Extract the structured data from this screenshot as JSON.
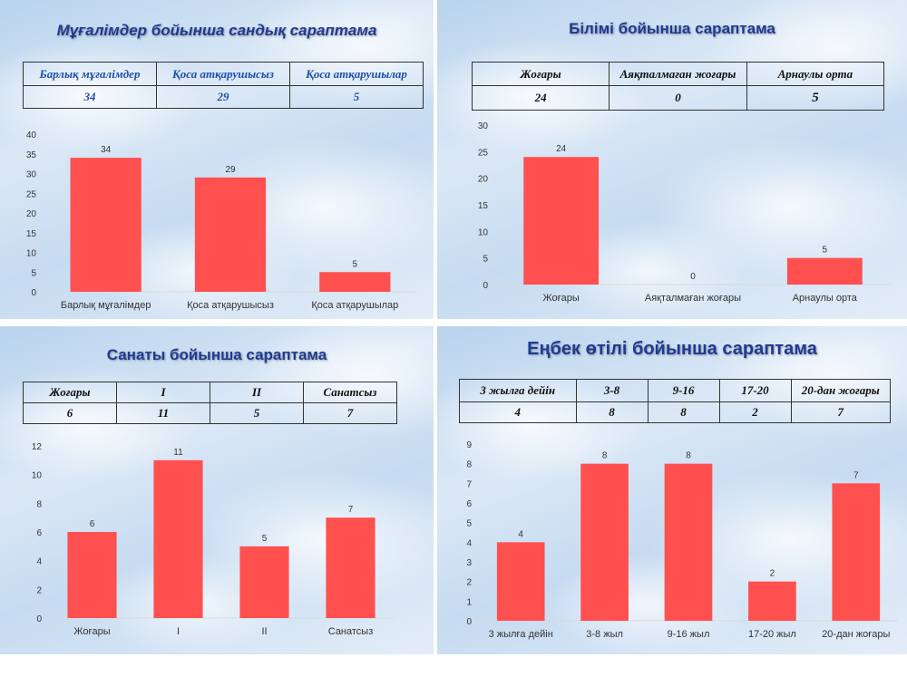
{
  "panels": {
    "p1": {
      "title": "Мұғалімдер бойынша сандық сараптама",
      "table": {
        "headers": [
          "Барлық мұғалімдер",
          "Қоса атқарушысыз",
          "Қоса атқарушылар"
        ],
        "values": [
          "34",
          "29",
          "5"
        ]
      }
    },
    "p2": {
      "title": "Білімі бойынша сараптама",
      "table": {
        "headers": [
          "Жоғары",
          "Аяқталмаған жоғары",
          "Арнаулы орта"
        ],
        "values": [
          "24",
          "0",
          "5"
        ]
      }
    },
    "p3": {
      "title": "Санаты бойынша сараптама",
      "table": {
        "headers": [
          "Жоғары",
          "I",
          "II",
          "Санатсыз"
        ],
        "values": [
          "6",
          "11",
          "5",
          "7"
        ]
      }
    },
    "p4": {
      "title": "Еңбек өтілі бойынша сараптама",
      "table": {
        "headers": [
          "3 жылға дейін",
          "3-8",
          "9-16",
          "17-20",
          "20-дан жоғары"
        ],
        "values": [
          "4",
          "8",
          "8",
          "2",
          "7"
        ]
      }
    }
  },
  "colors": {
    "bar": "#ff5050",
    "title_p1": "#1f3a93",
    "title_p2": "#1f3a93",
    "table_text": "#1f4fa8",
    "table_text_dark": "#111111"
  },
  "chart_data": [
    {
      "type": "bar",
      "categories": [
        "Барлық мұғалімдер",
        "Қоса атқарушысыз",
        "Қоса атқарушылар"
      ],
      "values": [
        34,
        29,
        5
      ],
      "yticks": [
        "0",
        "5",
        "10",
        "15",
        "20",
        "25",
        "30",
        "35",
        "40"
      ],
      "ylim": [
        0,
        40
      ],
      "grid": false
    },
    {
      "type": "bar",
      "categories": [
        "Жоғары",
        "Аяқталмаған жоғары",
        "Арнаулы орта"
      ],
      "values": [
        24,
        0,
        5
      ],
      "yticks": [
        "0",
        "5",
        "10",
        "15",
        "20",
        "25",
        "30"
      ],
      "ylim": [
        0,
        30
      ],
      "grid": false
    },
    {
      "type": "bar",
      "categories": [
        "Жоғары",
        "I",
        "II",
        "Санатсыз"
      ],
      "values": [
        6,
        11,
        5,
        7
      ],
      "yticks": [
        "0",
        "2",
        "4",
        "6",
        "8",
        "10",
        "12"
      ],
      "ylim": [
        0,
        12
      ],
      "grid": false
    },
    {
      "type": "bar",
      "categories": [
        "3 жылға дейін",
        "3-8 жыл",
        "9-16 жыл",
        "17-20 жыл",
        "20-дан жоғары"
      ],
      "values": [
        4,
        8,
        8,
        2,
        7
      ],
      "yticks": [
        "0",
        "1",
        "2",
        "3",
        "4",
        "5",
        "6",
        "7",
        "8",
        "9"
      ],
      "ylim": [
        0,
        9
      ],
      "grid": false
    }
  ]
}
